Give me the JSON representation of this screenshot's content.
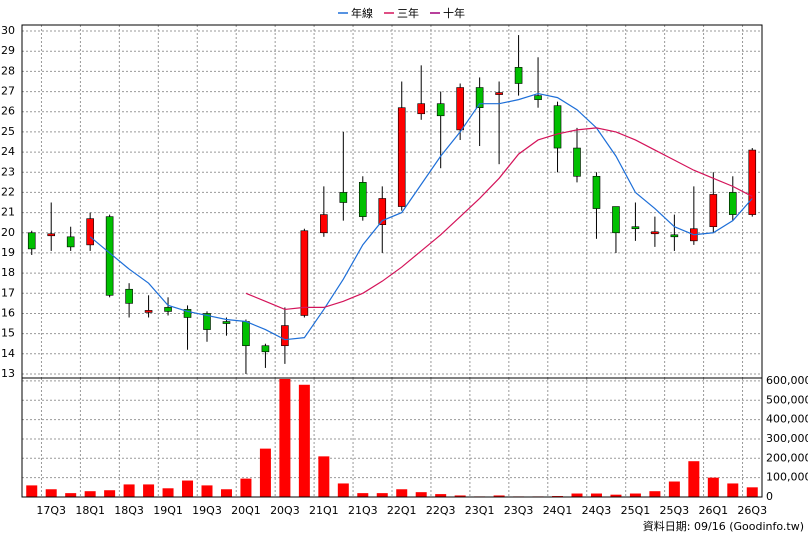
{
  "chart_data": [
    {
      "type": "candlestick",
      "open": [
        20.0,
        19.9,
        19.8,
        19.4,
        20.8,
        17.2,
        16.1,
        16.3,
        16.2,
        16.0,
        15.6,
        15.6,
        14.4,
        14.4,
        15.9,
        20.0,
        22.0,
        22.5,
        20.4,
        21.3,
        25.9,
        26.4,
        25.1,
        27.2,
        26.9,
        28.2,
        26.8,
        26.3,
        24.2,
        22.8,
        21.3,
        20.3,
        20.0,
        19.9,
        19.6,
        20.3,
        22.0,
        20.9
      ],
      "high": [
        20.1,
        21.5,
        20.3,
        21.0,
        20.9,
        17.5,
        16.9,
        16.8,
        16.4,
        16.1,
        15.8,
        15.7,
        14.5,
        16.3,
        20.2,
        22.3,
        25.0,
        22.8,
        22.3,
        27.5,
        28.3,
        27.0,
        27.4,
        27.7,
        27.5,
        29.8,
        28.7,
        26.5,
        25.2,
        23.0,
        21.3,
        21.5,
        20.8,
        20.9,
        22.3,
        23.0,
        22.8,
        24.2
      ],
      "low": [
        18.9,
        19.1,
        19.1,
        19.1,
        16.8,
        15.8,
        15.8,
        15.9,
        14.2,
        14.6,
        14.9,
        13.0,
        13.3,
        13.5,
        15.8,
        19.8,
        20.6,
        20.6,
        19.0,
        21.1,
        25.6,
        23.2,
        24.6,
        24.3,
        23.4,
        26.8,
        26.2,
        23.0,
        22.5,
        19.7,
        19.0,
        19.6,
        19.3,
        19.1,
        19.4,
        20.0,
        20.6,
        20.8
      ],
      "close": [
        19.2,
        19.9,
        19.3,
        20.7,
        16.9,
        16.5,
        16.1,
        16.1,
        15.8,
        15.2,
        15.5,
        14.4,
        14.1,
        15.4,
        20.1,
        20.9,
        21.5,
        20.8,
        21.7,
        26.2,
        26.4,
        25.8,
        27.2,
        26.2,
        26.9,
        27.4,
        26.6,
        24.2,
        22.8,
        21.2,
        20.0,
        20.2,
        20.0,
        19.8,
        20.2,
        21.9,
        20.9,
        24.1
      ],
      "up_color": "#ff0000",
      "down_color": "#00c000",
      "series": [
        {
          "name": "年線",
          "color": "#1e6fd8",
          "values": [
            null,
            null,
            null,
            19.8,
            19.0,
            18.2,
            17.5,
            16.4,
            16.1,
            15.9,
            15.7,
            15.6,
            15.2,
            14.7,
            14.8,
            16.2,
            17.7,
            19.4,
            20.6,
            21.0,
            22.4,
            23.8,
            25.0,
            26.4,
            26.4,
            26.6,
            26.9,
            26.7,
            26.1,
            25.2,
            23.8,
            22.0,
            21.2,
            20.3,
            19.9,
            20.0,
            20.6,
            21.7
          ]
        },
        {
          "name": "三年",
          "color": "#d4145a",
          "values": [
            null,
            null,
            null,
            null,
            null,
            null,
            null,
            null,
            null,
            null,
            null,
            17.0,
            16.6,
            16.2,
            16.3,
            16.3,
            16.6,
            17.0,
            17.6,
            18.3,
            19.1,
            19.9,
            20.8,
            21.7,
            22.7,
            23.9,
            24.6,
            24.9,
            25.1,
            25.2,
            25.0,
            24.6,
            24.1,
            23.6,
            23.1,
            22.7,
            22.3,
            21.8
          ]
        },
        {
          "name": "十年",
          "color": "#a0007a",
          "values": [
            null,
            null,
            null,
            null,
            null,
            null,
            null,
            null,
            null,
            null,
            null,
            null,
            null,
            null,
            null,
            null,
            null,
            null,
            null,
            null,
            null,
            null,
            null,
            null,
            null,
            null,
            null,
            null,
            null,
            null,
            null,
            null,
            null,
            null,
            null,
            null,
            null,
            null
          ]
        }
      ],
      "ylim": [
        12.8,
        30.3
      ],
      "yticks": [
        13,
        14,
        15,
        16,
        17,
        18,
        19,
        20,
        21,
        22,
        23,
        24,
        25,
        26,
        27,
        28,
        29,
        30
      ],
      "grid": true
    },
    {
      "type": "bar",
      "categories": [
        null,
        "17Q3",
        null,
        "18Q1",
        null,
        "18Q3",
        null,
        "19Q1",
        null,
        "19Q3",
        null,
        "20Q1",
        null,
        "20Q3",
        null,
        "21Q1",
        null,
        "21Q3",
        null,
        "22Q1",
        null,
        "22Q3",
        null,
        "23Q1",
        null,
        "23Q3",
        null,
        "24Q1",
        null,
        "24Q3",
        null,
        "25Q1",
        null,
        "25Q3",
        null,
        "26Q1",
        null,
        "26Q3"
      ],
      "values": [
        60000,
        40000,
        20000,
        30000,
        35000,
        65000,
        65000,
        45000,
        85000,
        60000,
        40000,
        95000,
        250000,
        610000,
        580000,
        210000,
        70000,
        20000,
        20000,
        40000,
        25000,
        15000,
        8000,
        3000,
        8000,
        3000,
        3000,
        5000,
        18000,
        18000,
        12000,
        18000,
        30000,
        80000,
        185000,
        100000,
        70000,
        50000
      ],
      "color": "#ff0000",
      "ylim": [
        0,
        615000
      ],
      "yticks": [
        0,
        {
          "value": 100000,
          "label": "100,000"
        },
        {
          "value": 200000,
          "label": "200,000"
        },
        {
          "value": 300000,
          "label": "300,000"
        },
        {
          "value": 400000,
          "label": "400,000"
        },
        {
          "value": 500000,
          "label": "500,000"
        },
        {
          "value": 600000,
          "label": "600,000"
        }
      ],
      "grid": true,
      "source": "資料日期: 09/16  (Goodinfo.tw)"
    }
  ]
}
